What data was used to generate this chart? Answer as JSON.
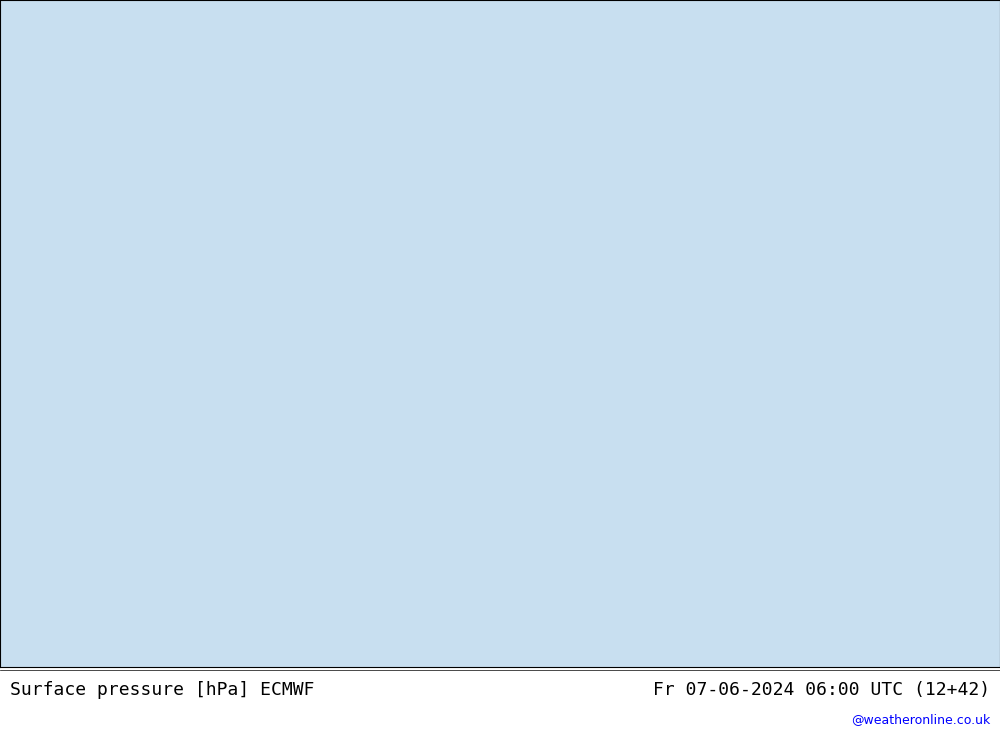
{
  "title_left": "Surface pressure [hPa] ECMWF",
  "title_right": "Fr 07-06-2024 06:00 UTC (12+42)",
  "watermark": "@weatheronline.co.uk",
  "background_color": "#e8e8e8",
  "land_color": "#b8e8a0",
  "sea_color": "#e0e8f0",
  "border_color": "#808080",
  "coastline_color": "#808080",
  "figsize": [
    10.0,
    7.33
  ],
  "dpi": 100,
  "title_fontsize": 13,
  "watermark_fontsize": 9,
  "title_font_family": "monospace"
}
